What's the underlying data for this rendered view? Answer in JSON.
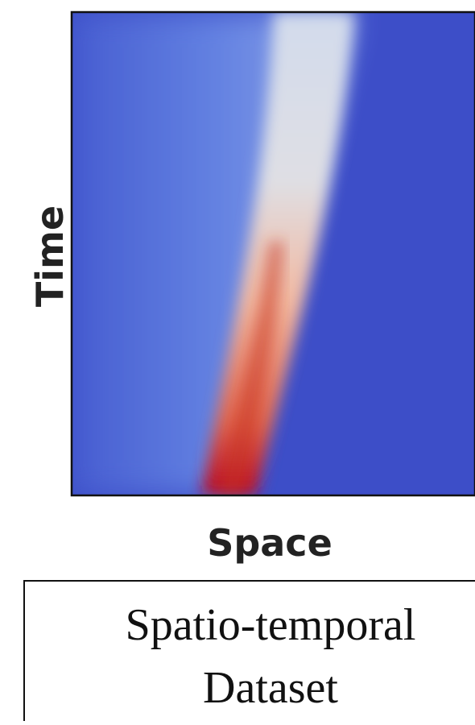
{
  "axes": {
    "y_label": "Time",
    "x_label": "Space"
  },
  "caption": {
    "lines": [
      "Spatio-temporal",
      "Dataset"
    ]
  }
}
